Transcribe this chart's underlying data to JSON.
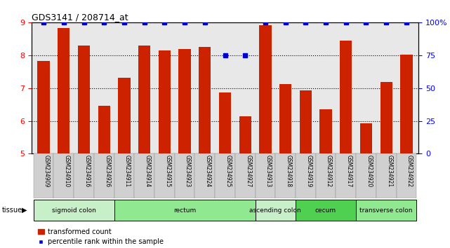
{
  "title": "GDS3141 / 208714_at",
  "samples": [
    "GSM234909",
    "GSM234910",
    "GSM234916",
    "GSM234926",
    "GSM234911",
    "GSM234914",
    "GSM234915",
    "GSM234923",
    "GSM234924",
    "GSM234925",
    "GSM234927",
    "GSM234913",
    "GSM234918",
    "GSM234919",
    "GSM234912",
    "GSM234917",
    "GSM234920",
    "GSM234921",
    "GSM234922"
  ],
  "bar_values": [
    7.82,
    8.82,
    8.3,
    6.47,
    7.32,
    8.3,
    8.15,
    8.18,
    8.25,
    6.87,
    6.15,
    8.92,
    7.12,
    6.93,
    6.35,
    8.45,
    5.92,
    7.18,
    8.02
  ],
  "percentile_values": [
    100,
    100,
    100,
    100,
    100,
    100,
    100,
    100,
    100,
    75,
    75,
    100,
    100,
    100,
    100,
    100,
    100,
    100,
    100
  ],
  "tissues": [
    {
      "label": "sigmoid colon",
      "start": 0,
      "end": 3,
      "color": "#c8f0c8"
    },
    {
      "label": "rectum",
      "start": 4,
      "end": 10,
      "color": "#90e890"
    },
    {
      "label": "ascending colon",
      "start": 11,
      "end": 12,
      "color": "#c8f0c8"
    },
    {
      "label": "cecum",
      "start": 13,
      "end": 15,
      "color": "#50d050"
    },
    {
      "label": "transverse colon",
      "start": 16,
      "end": 18,
      "color": "#90e890"
    }
  ],
  "bar_color": "#cc2200",
  "dot_color": "#0000cc",
  "ylim_left": [
    5,
    9
  ],
  "ylim_right": [
    0,
    100
  ],
  "yticks_left": [
    5,
    6,
    7,
    8,
    9
  ],
  "yticks_right": [
    0,
    25,
    50,
    75,
    100
  ],
  "ytick_labels_right": [
    "0",
    "25",
    "50",
    "75",
    "100%"
  ],
  "background_plot": "#e8e8e8",
  "background_labels": "#d0d0d0",
  "grid_color": "black"
}
